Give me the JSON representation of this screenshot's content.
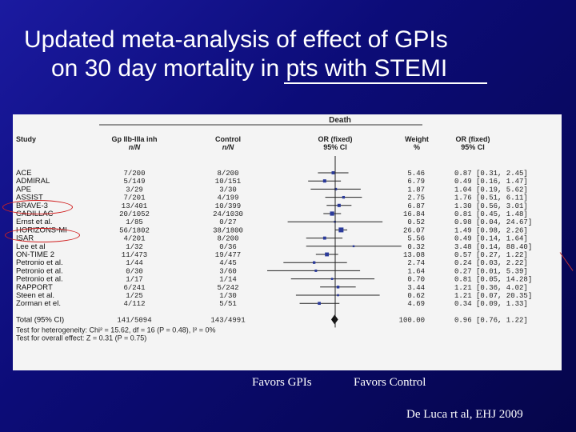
{
  "slide": {
    "title_line1": "Updated meta-analysis of effect of GPIs",
    "title_line2": "on 30 day mortality in pts with STEMI",
    "favors_left": "Favors GPIs",
    "favors_right": "Favors Control",
    "citation": "De Luca rt al,  EHJ 2009"
  },
  "forest": {
    "outcome_header": "Death",
    "headers": {
      "study": "Study",
      "treat": "Gp IIb-IIIa inh",
      "treat_sub": "n/N",
      "control": "Control",
      "control_sub": "n/N",
      "or_fixed": "OR (fixed)",
      "or_fixed_sub": "95% CI",
      "weight": "Weight",
      "weight_sub": "%",
      "or_ci": "OR (fixed)",
      "or_ci_sub": "95% CI"
    },
    "studies": [
      {
        "name": "ACE",
        "treat": "7/200",
        "control": "8/200",
        "weight": "5.46",
        "or": 0.87,
        "lo": 0.31,
        "hi": 2.45,
        "or_text": "0.87 [0.31, 2.45]"
      },
      {
        "name": "ADMIRAL",
        "treat": "5/149",
        "control": "10/151",
        "weight": "6.79",
        "or": 0.49,
        "lo": 0.16,
        "hi": 1.47,
        "or_text": "0.49 [0.16, 1.47]"
      },
      {
        "name": "APE",
        "treat": "3/29",
        "control": "3/30",
        "weight": "1.87",
        "or": 1.04,
        "lo": 0.19,
        "hi": 5.62,
        "or_text": "1.04 [0.19, 5.62]"
      },
      {
        "name": "ASSIST",
        "treat": "7/201",
        "control": "4/199",
        "weight": "2.75",
        "or": 1.76,
        "lo": 0.51,
        "hi": 6.11,
        "or_text": "1.76 [0.51, 6.11]"
      },
      {
        "name": "BRAVE-3",
        "treat": "13/401",
        "control": "10/399",
        "weight": "6.87",
        "or": 1.3,
        "lo": 0.56,
        "hi": 3.01,
        "or_text": "1.30 [0.56, 3.01]"
      },
      {
        "name": "CADILLAC",
        "treat": "20/1052",
        "control": "24/1030",
        "weight": "16.84",
        "or": 0.81,
        "lo": 0.45,
        "hi": 1.48,
        "or_text": "0.81 [0.45, 1.48]"
      },
      {
        "name": "Ernst et al.",
        "treat": "1/85",
        "control": "0/27",
        "weight": "0.52",
        "or": 0.98,
        "lo": 0.04,
        "hi": 24.67,
        "or_text": "0.98 [0.04, 24.67]"
      },
      {
        "name": "HORIZONS-MI",
        "treat": "56/1802",
        "control": "38/1800",
        "weight": "26.07",
        "or": 1.49,
        "lo": 0.98,
        "hi": 2.26,
        "or_text": "1.49 [0.98, 2.26]"
      },
      {
        "name": "ISAR",
        "treat": "4/201",
        "control": "8/200",
        "weight": "5.56",
        "or": 0.49,
        "lo": 0.14,
        "hi": 1.64,
        "or_text": "0.49 [0.14, 1.64]"
      },
      {
        "name": "Lee et al",
        "treat": "1/32",
        "control": "0/36",
        "weight": "0.32",
        "or": 3.48,
        "lo": 0.14,
        "hi": 88.4,
        "or_text": "3.48 [0.14, 88.40]"
      },
      {
        "name": "ON-TIME 2",
        "treat": "11/473",
        "control": "19/477",
        "weight": "13.08",
        "or": 0.57,
        "lo": 0.27,
        "hi": 1.22,
        "or_text": "0.57 [0.27, 1.22]"
      },
      {
        "name": "Petronio et al.",
        "treat": "1/44",
        "control": "4/45",
        "weight": "2.74",
        "or": 0.24,
        "lo": 0.03,
        "hi": 2.22,
        "or_text": "0.24 [0.03, 2.22]"
      },
      {
        "name": "Petronio et al.",
        "treat": "0/30",
        "control": "3/60",
        "weight": "1.64",
        "or": 0.27,
        "lo": 0.01,
        "hi": 5.39,
        "or_text": "0.27 [0.01, 5.39]"
      },
      {
        "name": "Petronio et al.",
        "treat": "1/17",
        "control": "1/14",
        "weight": "0.70",
        "or": 0.81,
        "lo": 0.05,
        "hi": 14.28,
        "or_text": "0.81 [0.05, 14.28]"
      },
      {
        "name": "RAPPORT",
        "treat": "6/241",
        "control": "5/242",
        "weight": "3.44",
        "or": 1.21,
        "lo": 0.36,
        "hi": 4.02,
        "or_text": "1.21 [0.36, 4.02]"
      },
      {
        "name": "Steen et al.",
        "treat": "1/25",
        "control": "1/30",
        "weight": "0.62",
        "or": 1.21,
        "lo": 0.07,
        "hi": 20.35,
        "or_text": "1.21 [0.07, 20.35]"
      },
      {
        "name": "Zorman et el.",
        "treat": "4/112",
        "control": "5/51",
        "weight": "4.69",
        "or": 0.34,
        "lo": 0.09,
        "hi": 1.33,
        "or_text": "0.34 [0.09, 1.33]"
      }
    ],
    "total": {
      "name": "Total (95% CI)",
      "treat": "141/5094",
      "control": "143/4991",
      "weight": "100.00",
      "or": 0.96,
      "lo": 0.76,
      "hi": 1.22,
      "or_text": "0.96 [0.76, 1.22]"
    },
    "heterogeneity": "Test for heterogeneity: Chi² = 15.62, df = 16 (P = 0.48), I² = 0%",
    "overall": "Test for overall effect: Z = 0.31 (P = 0.75)",
    "highlighted_studies": [
      "BRAVE-3",
      "HORIZONS-MI"
    ]
  }
}
